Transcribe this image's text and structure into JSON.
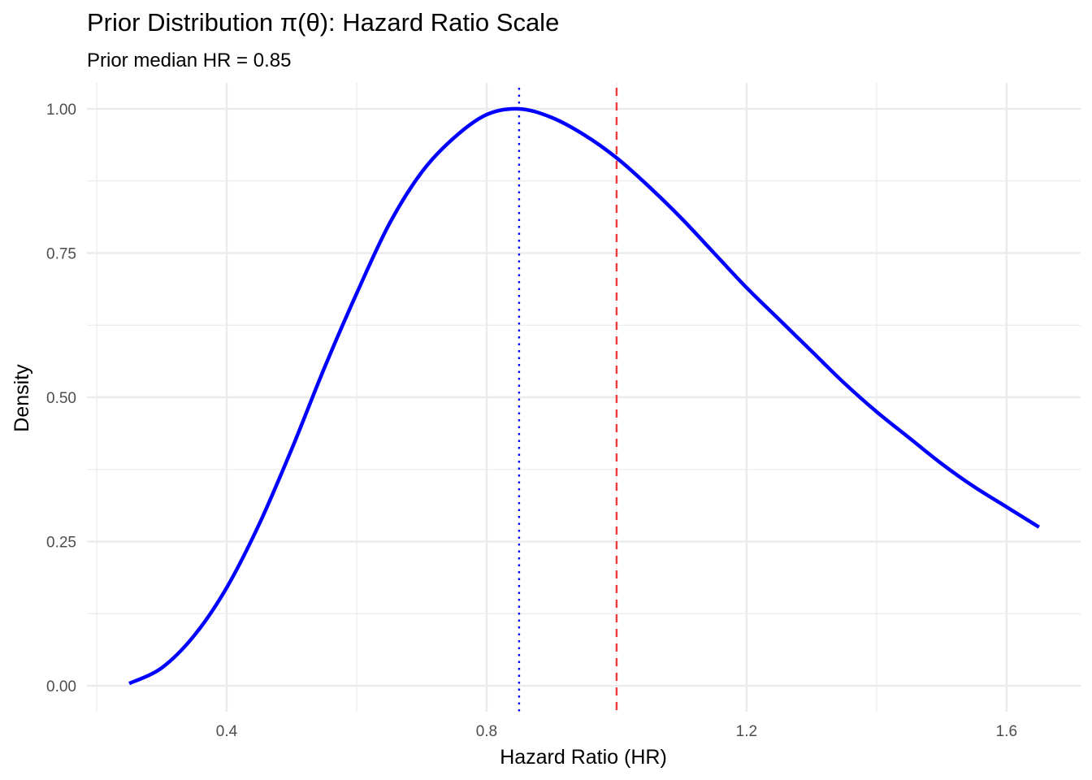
{
  "chart_data": {
    "type": "line",
    "title": "Prior Distribution π(θ): Hazard Ratio Scale",
    "subtitle": "Prior median HR = 0.85",
    "xlabel": "Hazard Ratio (HR)",
    "ylabel": "Density",
    "xlim": [
      0.185,
      1.714
    ],
    "ylim": [
      -0.045,
      1.045
    ],
    "x_ticks": [
      0.4,
      0.8,
      1.2,
      1.6
    ],
    "x_tick_labels": [
      "0.4",
      "0.8",
      "1.2",
      "1.6"
    ],
    "x_minor_ticks": [
      0.2,
      0.6,
      1.0,
      1.4
    ],
    "y_ticks": [
      0.0,
      0.25,
      0.5,
      0.75,
      1.0
    ],
    "y_tick_labels": [
      "0.00",
      "0.25",
      "0.50",
      "0.75",
      "1.00"
    ],
    "y_minor_ticks": [
      0.125,
      0.375,
      0.625,
      0.875
    ],
    "grid": true,
    "series": [
      {
        "color": "#0000ff",
        "x": [
          0.25,
          0.3,
          0.35,
          0.4,
          0.45,
          0.5,
          0.55,
          0.6,
          0.65,
          0.7,
          0.75,
          0.8,
          0.85,
          0.9,
          0.95,
          1.0,
          1.05,
          1.1,
          1.15,
          1.2,
          1.25,
          1.3,
          1.35,
          1.4,
          1.45,
          1.5,
          1.55,
          1.6,
          1.65
        ],
        "y": [
          0.004,
          0.031,
          0.087,
          0.17,
          0.28,
          0.41,
          0.55,
          0.68,
          0.8,
          0.89,
          0.95,
          0.99,
          1.0,
          0.985,
          0.955,
          0.915,
          0.865,
          0.81,
          0.75,
          0.69,
          0.635,
          0.58,
          0.525,
          0.475,
          0.43,
          0.385,
          0.345,
          0.31,
          0.275
        ]
      }
    ],
    "reference_lines": [
      {
        "x": 0.85,
        "color": "#0000ff",
        "style": "dotted"
      },
      {
        "x": 1.0,
        "color": "#ef3b3b",
        "style": "dashed"
      }
    ]
  }
}
